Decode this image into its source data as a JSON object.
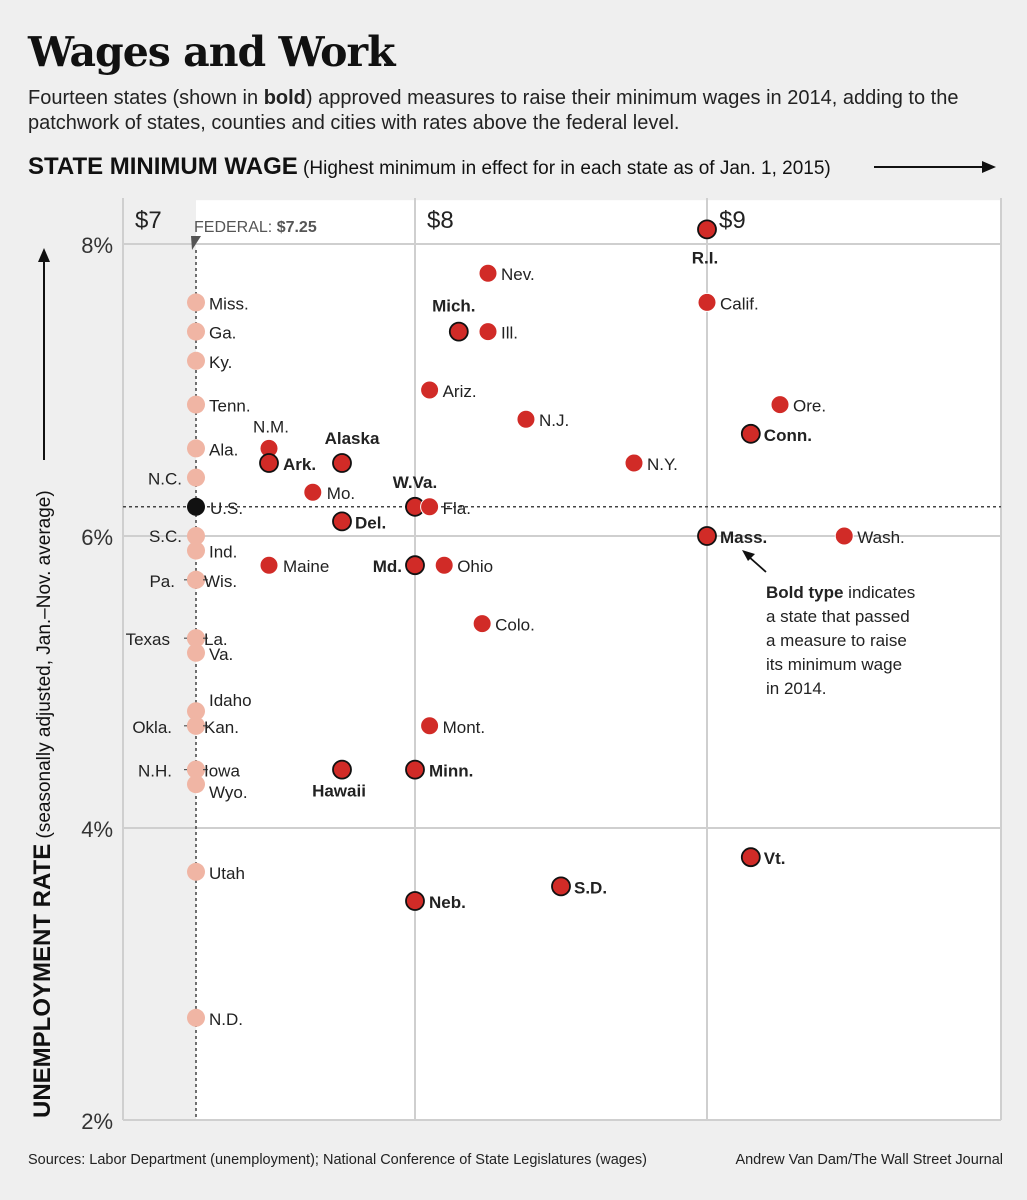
{
  "title": "Wages and Work",
  "subtitle": {
    "before": "Fourteen states (shown in ",
    "bold": "bold",
    "after": ") approved measures to raise their minimum wages in 2014, adding to the patchwork of states, counties and cities with rates above the federal level."
  },
  "source": "Sources: Labor Department (unemployment); National Conference of State Legislatures (wages)",
  "credit": "Andrew Van Dam/The Wall Street Journal",
  "colors": {
    "passed": "#d12b27",
    "other": "#d12b27",
    "federal": "#f0b5a4",
    "us": "#111111",
    "grid": "#cfcfcf",
    "plot_bg": "#ffffff",
    "page_bg": "#efefef"
  },
  "chart_data": {
    "type": "scatter",
    "xlabel": "STATE MINIMUM WAGE",
    "xlabel_note": "(Highest minimum in effect for in each state as of Jan. 1, 2015)",
    "ylabel": "UNEMPLOYMENT RATE",
    "ylabel_note": "(seasonally adjusted, Jan.–Nov. average)",
    "xlim": [
      7.0,
      9.99
    ],
    "ylim": [
      2,
      8.3
    ],
    "x_ticks": [
      {
        "value": 7,
        "label": "$7"
      },
      {
        "value": 8,
        "label": "$8"
      },
      {
        "value": 9,
        "label": "$9"
      }
    ],
    "y_ticks": [
      {
        "value": 2,
        "label": "2%"
      },
      {
        "value": 4,
        "label": "4%"
      },
      {
        "value": 6,
        "label": "6%"
      },
      {
        "value": 8,
        "label": "8%"
      }
    ],
    "federal_line": {
      "value": 7.25,
      "label": "FEDERAL: ",
      "label_value": "$7.25"
    },
    "us_line": {
      "value": 6.2
    },
    "annotation": {
      "bold": "Bold type",
      "rest": "indicates a state that passed a measure to raise its minimum wage in 2014."
    },
    "points": [
      {
        "label": "Miss.",
        "x": 7.25,
        "y": 7.6,
        "group": "federal",
        "bold": false
      },
      {
        "label": "Ga.",
        "x": 7.25,
        "y": 7.4,
        "group": "federal",
        "bold": false
      },
      {
        "label": "Ky.",
        "x": 7.25,
        "y": 7.2,
        "group": "federal",
        "bold": false
      },
      {
        "label": "Tenn.",
        "x": 7.25,
        "y": 6.9,
        "group": "federal",
        "bold": false
      },
      {
        "label": "Ala.",
        "x": 7.25,
        "y": 6.6,
        "group": "federal",
        "bold": false
      },
      {
        "label": "N.C.",
        "x": 7.25,
        "y": 6.4,
        "group": "federal",
        "bold": false
      },
      {
        "label": "U.S.",
        "x": 7.25,
        "y": 6.2,
        "group": "us",
        "bold": false
      },
      {
        "label": "S.C.",
        "x": 7.25,
        "y": 6.0,
        "group": "federal",
        "bold": false
      },
      {
        "label": "Ind.",
        "x": 7.25,
        "y": 5.9,
        "group": "federal",
        "bold": false
      },
      {
        "label": "Pa.",
        "x": 7.25,
        "y": 5.7,
        "group": "federal",
        "bold": false
      },
      {
        "label": "Wis.",
        "x": 7.25,
        "y": 5.7,
        "group": "federal",
        "bold": false
      },
      {
        "label": "Texas",
        "x": 7.25,
        "y": 5.3,
        "group": "federal",
        "bold": false
      },
      {
        "label": "La.",
        "x": 7.25,
        "y": 5.3,
        "group": "federal",
        "bold": false
      },
      {
        "label": "Va.",
        "x": 7.25,
        "y": 5.2,
        "group": "federal",
        "bold": false
      },
      {
        "label": "Idaho",
        "x": 7.25,
        "y": 4.8,
        "group": "federal",
        "bold": false
      },
      {
        "label": "Okla.",
        "x": 7.25,
        "y": 4.7,
        "group": "federal",
        "bold": false
      },
      {
        "label": "Kan.",
        "x": 7.25,
        "y": 4.7,
        "group": "federal",
        "bold": false
      },
      {
        "label": "N.H.",
        "x": 7.25,
        "y": 4.4,
        "group": "federal",
        "bold": false
      },
      {
        "label": "Iowa",
        "x": 7.25,
        "y": 4.4,
        "group": "federal",
        "bold": false
      },
      {
        "label": "Wyo.",
        "x": 7.25,
        "y": 4.3,
        "group": "federal",
        "bold": false
      },
      {
        "label": "Utah",
        "x": 7.25,
        "y": 3.7,
        "group": "federal",
        "bold": false
      },
      {
        "label": "N.D.",
        "x": 7.25,
        "y": 2.7,
        "group": "federal",
        "bold": false
      },
      {
        "label": "N.M.",
        "x": 7.5,
        "y": 6.6,
        "group": "state",
        "bold": false
      },
      {
        "label": "Ark.",
        "x": 7.5,
        "y": 6.5,
        "group": "state",
        "bold": true
      },
      {
        "label": "Maine",
        "x": 7.5,
        "y": 5.8,
        "group": "state",
        "bold": false
      },
      {
        "label": "Mo.",
        "x": 7.65,
        "y": 6.3,
        "group": "state",
        "bold": false
      },
      {
        "label": "Alaska",
        "x": 7.75,
        "y": 6.5,
        "group": "state",
        "bold": true
      },
      {
        "label": "Del.",
        "x": 7.75,
        "y": 6.1,
        "group": "state",
        "bold": true
      },
      {
        "label": "Hawaii",
        "x": 7.75,
        "y": 4.4,
        "group": "state",
        "bold": true
      },
      {
        "label": "W.Va.",
        "x": 8.0,
        "y": 6.2,
        "group": "state",
        "bold": true
      },
      {
        "label": "Md.",
        "x": 8.0,
        "y": 5.8,
        "group": "state",
        "bold": true
      },
      {
        "label": "Minn.",
        "x": 8.0,
        "y": 4.4,
        "group": "state",
        "bold": true
      },
      {
        "label": "Neb.",
        "x": 8.0,
        "y": 3.5,
        "group": "state",
        "bold": true
      },
      {
        "label": "Fla.",
        "x": 8.05,
        "y": 6.2,
        "group": "state",
        "bold": false
      },
      {
        "label": "Ariz.",
        "x": 8.05,
        "y": 7.0,
        "group": "state",
        "bold": false
      },
      {
        "label": "Mont.",
        "x": 8.05,
        "y": 4.7,
        "group": "state",
        "bold": false
      },
      {
        "label": "Ohio",
        "x": 8.1,
        "y": 5.8,
        "group": "state",
        "bold": false
      },
      {
        "label": "Mich.",
        "x": 8.15,
        "y": 7.4,
        "group": "state",
        "bold": true
      },
      {
        "label": "Ill.",
        "x": 8.25,
        "y": 7.4,
        "group": "state",
        "bold": false
      },
      {
        "label": "Nev.",
        "x": 8.25,
        "y": 7.8,
        "group": "state",
        "bold": false
      },
      {
        "label": "Colo.",
        "x": 8.23,
        "y": 5.4,
        "group": "state",
        "bold": false
      },
      {
        "label": "N.J.",
        "x": 8.38,
        "y": 6.8,
        "group": "state",
        "bold": false
      },
      {
        "label": "S.D.",
        "x": 8.5,
        "y": 3.6,
        "group": "state",
        "bold": true
      },
      {
        "label": "N.Y.",
        "x": 8.75,
        "y": 6.5,
        "group": "state",
        "bold": false
      },
      {
        "label": "R.I.",
        "x": 9.0,
        "y": 8.1,
        "group": "state",
        "bold": true
      },
      {
        "label": "Calif.",
        "x": 9.0,
        "y": 7.6,
        "group": "state",
        "bold": false
      },
      {
        "label": "Mass.",
        "x": 9.0,
        "y": 6.0,
        "group": "state",
        "bold": true
      },
      {
        "label": "Conn.",
        "x": 9.15,
        "y": 6.7,
        "group": "state",
        "bold": true
      },
      {
        "label": "Vt.",
        "x": 9.15,
        "y": 3.8,
        "group": "state",
        "bold": true
      },
      {
        "label": "Ore.",
        "x": 9.25,
        "y": 6.9,
        "group": "state",
        "bold": false
      },
      {
        "label": "Wash.",
        "x": 9.47,
        "y": 6.0,
        "group": "state",
        "bold": false
      }
    ]
  }
}
